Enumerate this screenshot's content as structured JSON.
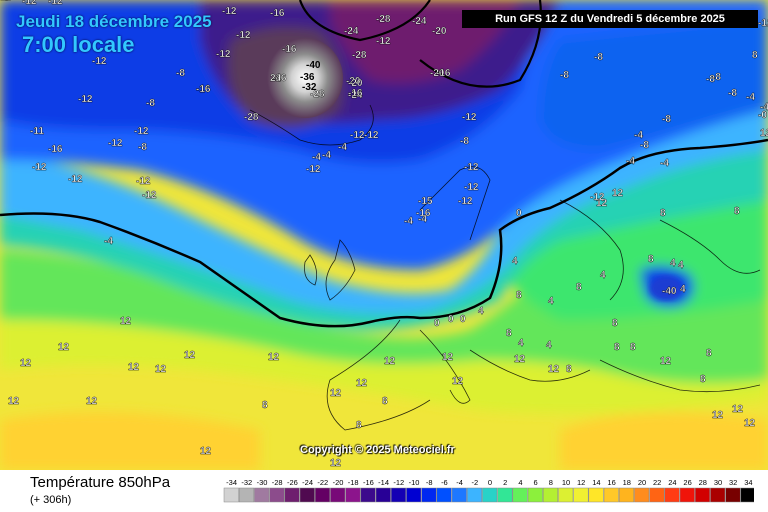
{
  "header": {
    "date": "Jeudi 18 décembre 2025",
    "time": "7:00 locale",
    "run": "Run GFS 12 Z du Vendredi 5 décembre 2025"
  },
  "copyright": "Copyright © 2025 Meteociel.fr",
  "footer": {
    "parameter": "Température 850hPa",
    "lead_time": "(+ 306h)"
  },
  "legend": {
    "values": [
      "-34",
      "-32",
      "-30",
      "-28",
      "-26",
      "-24",
      "-22",
      "-20",
      "-18",
      "-16",
      "-14",
      "-12",
      "-10",
      "-8",
      "-6",
      "-4",
      "-2",
      "0",
      "2",
      "4",
      "6",
      "8",
      "10",
      "12",
      "14",
      "16",
      "18",
      "20",
      "22",
      "24",
      "26",
      "28",
      "30",
      "32",
      "34"
    ],
    "colors": [
      "#d2d2d2",
      "#b4b4b4",
      "#a07aa0",
      "#8c4c8c",
      "#6e1e6e",
      "#500a50",
      "#640064",
      "#780a78",
      "#8c148c",
      "#3c0a8c",
      "#280096",
      "#1400b4",
      "#0000d2",
      "#0028f0",
      "#0050ff",
      "#1e78ff",
      "#3cb4ff",
      "#28d2c8",
      "#32e696",
      "#64f05a",
      "#8cf03c",
      "#b4f032",
      "#dcf032",
      "#f0f032",
      "#ffe628",
      "#ffc828",
      "#ffb41e",
      "#ff8c1e",
      "#ff6414",
      "#ff3c14",
      "#f0140a",
      "#d20000",
      "#aa0000",
      "#780000",
      "#000000"
    ]
  },
  "map_labels": [
    {
      "t": "-12",
      "c": "w"
    },
    {
      "t": "-12",
      "c": "w"
    },
    {
      "t": "-12",
      "c": "w"
    },
    {
      "t": "-16",
      "c": "w"
    },
    {
      "t": "-12",
      "c": "w"
    },
    {
      "t": "-12",
      "c": "w"
    },
    {
      "t": "-12",
      "c": "w"
    },
    {
      "t": "-8",
      "c": "w"
    },
    {
      "t": "-16",
      "c": "w"
    },
    {
      "t": "-12",
      "c": "w"
    },
    {
      "t": "-8",
      "c": "w"
    },
    {
      "t": "-12",
      "c": "w"
    },
    {
      "t": "-8",
      "c": "w"
    },
    {
      "t": "-12",
      "c": "w"
    },
    {
      "t": "-11",
      "c": "w"
    },
    {
      "t": "-16",
      "c": "w"
    },
    {
      "t": "-12",
      "c": "w"
    },
    {
      "t": "-12",
      "c": "w"
    },
    {
      "t": "-12",
      "c": "w"
    },
    {
      "t": "-12",
      "c": "w"
    },
    {
      "t": "-16",
      "c": "w"
    },
    {
      "t": "-12",
      "c": "w"
    },
    {
      "t": "-16",
      "c": "w"
    },
    {
      "t": "-24",
      "c": "w"
    },
    {
      "t": "-28",
      "c": "w"
    },
    {
      "t": "-28",
      "c": "w"
    },
    {
      "t": "-24",
      "c": "w"
    },
    {
      "t": "-20",
      "c": "w"
    },
    {
      "t": "-20",
      "c": "w"
    },
    {
      "t": "-24",
      "c": "w"
    },
    {
      "t": "-20",
      "c": "w"
    },
    {
      "t": "-16",
      "c": "w"
    },
    {
      "t": "24",
      "c": "w"
    },
    {
      "t": "-28",
      "c": "w"
    },
    {
      "t": "-40",
      "c": "k"
    },
    {
      "t": "-36",
      "c": "k"
    },
    {
      "t": "-32",
      "c": "k"
    },
    {
      "t": "-28",
      "c": "w"
    },
    {
      "t": "-20",
      "c": "w"
    },
    {
      "t": "-16",
      "c": "w"
    },
    {
      "t": "-16",
      "c": "w"
    },
    {
      "t": "-12",
      "c": "w"
    },
    {
      "t": "-12",
      "c": "w"
    },
    {
      "t": "-12",
      "c": "w"
    },
    {
      "t": "-8",
      "c": "w"
    },
    {
      "t": "-4",
      "c": "w"
    },
    {
      "t": "-4",
      "c": "w"
    },
    {
      "t": "-4",
      "c": "w"
    },
    {
      "t": "-12",
      "c": "w"
    },
    {
      "t": "-12",
      "c": "w"
    },
    {
      "t": "-12",
      "c": "w"
    },
    {
      "t": "-12",
      "c": "w"
    },
    {
      "t": "-15",
      "c": "w"
    },
    {
      "t": "-16",
      "c": "w"
    },
    {
      "t": "-4",
      "c": "w"
    },
    {
      "t": "-4",
      "c": "w"
    },
    {
      "t": "-4",
      "c": "w"
    },
    {
      "t": "-8",
      "c": "w"
    },
    {
      "t": "-8",
      "c": "w"
    },
    {
      "t": "-8",
      "c": "w"
    },
    {
      "t": "-8",
      "c": "w"
    },
    {
      "t": "-8",
      "c": "w"
    },
    {
      "t": "-4",
      "c": "w"
    },
    {
      "t": "-4",
      "c": "w"
    },
    {
      "t": "-4",
      "c": "w"
    },
    {
      "t": "-8",
      "c": "w"
    },
    {
      "t": "-4",
      "c": "w"
    },
    {
      "t": "-4",
      "c": "w"
    },
    {
      "t": "-8",
      "c": "w"
    },
    {
      "t": "-0",
      "c": "w"
    },
    {
      "t": "8",
      "c": "w"
    },
    {
      "t": "8",
      "c": "w"
    },
    {
      "t": "0",
      "c": "w"
    },
    {
      "t": "4",
      "c": "w"
    },
    {
      "t": "4",
      "c": "w"
    },
    {
      "t": "8",
      "c": "w"
    },
    {
      "t": "4",
      "c": "w"
    },
    {
      "t": "-40",
      "c": "w"
    },
    {
      "t": "4",
      "c": "w"
    },
    {
      "t": "4",
      "c": "w"
    },
    {
      "t": "0",
      "c": "w"
    },
    {
      "t": "0",
      "c": "w"
    },
    {
      "t": "0",
      "c": "w"
    },
    {
      "t": "4",
      "c": "w"
    },
    {
      "t": "8",
      "c": "w"
    },
    {
      "t": "8",
      "c": "w"
    },
    {
      "t": "4",
      "c": "w"
    },
    {
      "t": "8",
      "c": "w"
    },
    {
      "t": "8",
      "c": "w"
    },
    {
      "t": "4",
      "c": "w"
    },
    {
      "t": "4",
      "c": "w"
    },
    {
      "t": "8",
      "c": "w"
    },
    {
      "t": "8",
      "c": "w"
    },
    {
      "t": "8",
      "c": "w"
    },
    {
      "t": "12",
      "c": "w"
    },
    {
      "t": "12",
      "c": "w"
    },
    {
      "t": "12",
      "c": "w"
    },
    {
      "t": "12",
      "c": "w"
    },
    {
      "t": "12",
      "c": "w"
    },
    {
      "t": "12",
      "c": "w"
    },
    {
      "t": "12",
      "c": "w"
    },
    {
      "t": "12",
      "c": "w"
    },
    {
      "t": "12",
      "c": "w"
    },
    {
      "t": "12",
      "c": "w"
    },
    {
      "t": "12",
      "c": "w"
    },
    {
      "t": "12",
      "c": "w"
    },
    {
      "t": "12",
      "c": "w"
    },
    {
      "t": "8",
      "c": "w"
    },
    {
      "t": "8",
      "c": "w"
    },
    {
      "t": "8",
      "c": "w"
    },
    {
      "t": "8",
      "c": "w"
    },
    {
      "t": "8",
      "c": "w"
    },
    {
      "t": "12",
      "c": "w"
    },
    {
      "t": "12",
      "c": "w"
    },
    {
      "t": "12",
      "c": "w"
    },
    {
      "t": "12",
      "c": "w"
    },
    {
      "t": "12",
      "c": "w"
    },
    {
      "t": "12",
      "c": "w"
    },
    {
      "t": "12",
      "c": "w"
    },
    {
      "t": "12",
      "c": "w"
    },
    {
      "t": "12",
      "c": "w"
    },
    {
      "t": "12",
      "c": "w"
    },
    {
      "t": "8",
      "c": "w"
    },
    {
      "t": "12",
      "c": "w"
    },
    {
      "t": "12",
      "c": "w"
    },
    {
      "t": "-12",
      "c": "w"
    },
    {
      "t": "-12",
      "c": "w"
    },
    {
      "t": "-8",
      "c": "w"
    },
    {
      "t": "-8",
      "c": "w"
    },
    {
      "t": "-4",
      "c": "w"
    },
    {
      "t": "12",
      "c": "w"
    }
  ]
}
